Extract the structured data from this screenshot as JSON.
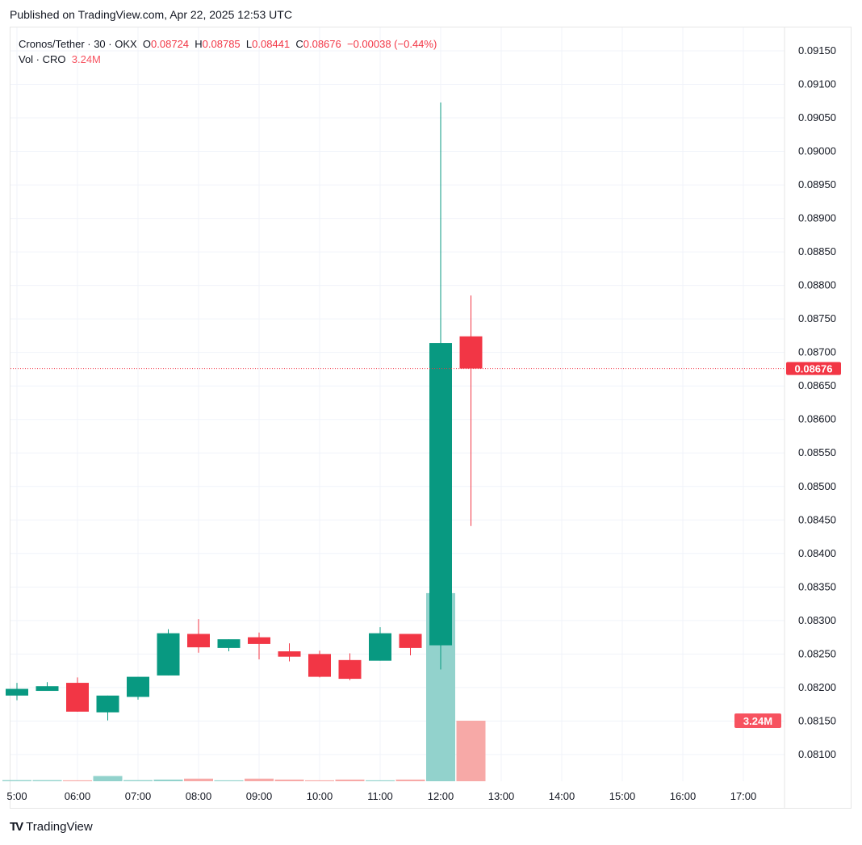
{
  "published": "Published on TradingView.com, Apr 22, 2025 12:53 UTC",
  "legend": {
    "symbol": "Cronos/Tether · 30 · OKX",
    "o_label": "O",
    "o": "0.08724",
    "h_label": "H",
    "h": "0.08785",
    "l_label": "L",
    "l": "0.08441",
    "c_label": "C",
    "c": "0.08676",
    "change": "−0.00038 (−0.44%)",
    "vol_label": "Vol · CRO",
    "vol": "3.24M"
  },
  "logo": "TradingView",
  "colors": {
    "up": "#089981",
    "down": "#f23645",
    "vol_up": "#92d2cc",
    "vol_down": "#f7a9a7",
    "grid": "#f0f3fa"
  },
  "chart_data": {
    "type": "candlestick",
    "title": "Cronos/Tether · 30 · OKX",
    "ylim": [
      0.0806,
      0.0918
    ],
    "yticks": [
      "0.08100",
      "0.08150",
      "0.08200",
      "0.08250",
      "0.08300",
      "0.08350",
      "0.08400",
      "0.08450",
      "0.08500",
      "0.08550",
      "0.08600",
      "0.08650",
      "0.08700",
      "0.08750",
      "0.08800",
      "0.08850",
      "0.08900",
      "0.08950",
      "0.09000",
      "0.09050",
      "0.09100",
      "0.09150"
    ],
    "xticks": [
      "5:00",
      "06:00",
      "07:00",
      "08:00",
      "09:00",
      "10:00",
      "11:00",
      "12:00",
      "13:00",
      "14:00",
      "15:00",
      "16:00",
      "17:00"
    ],
    "last_price_label": "0.08676",
    "last_volume_label": "3.24M",
    "candles": [
      {
        "t": "05:00",
        "o": 0.08188,
        "h": 0.08207,
        "l": 0.08181,
        "c": 0.08198,
        "v": 0.06
      },
      {
        "t": "05:30",
        "o": 0.08195,
        "h": 0.08208,
        "l": 0.08195,
        "c": 0.08202,
        "v": 0.06
      },
      {
        "t": "06:00",
        "o": 0.08207,
        "h": 0.08215,
        "l": 0.08164,
        "c": 0.08164,
        "v": 0.05
      },
      {
        "t": "06:30",
        "o": 0.08163,
        "h": 0.08188,
        "l": 0.08151,
        "c": 0.08188,
        "v": 0.28
      },
      {
        "t": "07:00",
        "o": 0.08186,
        "h": 0.08216,
        "l": 0.08182,
        "c": 0.08216,
        "v": 0.06
      },
      {
        "t": "07:30",
        "o": 0.08218,
        "h": 0.08287,
        "l": 0.08218,
        "c": 0.08281,
        "v": 0.09
      },
      {
        "t": "08:00",
        "o": 0.0828,
        "h": 0.08302,
        "l": 0.08252,
        "c": 0.0826,
        "v": 0.14
      },
      {
        "t": "08:30",
        "o": 0.08259,
        "h": 0.08272,
        "l": 0.08254,
        "c": 0.08272,
        "v": 0.05
      },
      {
        "t": "09:00",
        "o": 0.08275,
        "h": 0.08282,
        "l": 0.08242,
        "c": 0.08265,
        "v": 0.14
      },
      {
        "t": "09:30",
        "o": 0.08254,
        "h": 0.08266,
        "l": 0.08239,
        "c": 0.08246,
        "v": 0.09
      },
      {
        "t": "10:00",
        "o": 0.0825,
        "h": 0.08255,
        "l": 0.08215,
        "c": 0.08216,
        "v": 0.05
      },
      {
        "t": "10:30",
        "o": 0.08241,
        "h": 0.08251,
        "l": 0.08211,
        "c": 0.08213,
        "v": 0.09
      },
      {
        "t": "11:00",
        "o": 0.0824,
        "h": 0.0829,
        "l": 0.0824,
        "c": 0.08281,
        "v": 0.05
      },
      {
        "t": "11:30",
        "o": 0.0828,
        "h": 0.0828,
        "l": 0.08248,
        "c": 0.08259,
        "v": 0.09
      },
      {
        "t": "12:00",
        "o": 0.08263,
        "h": 0.09073,
        "l": 0.08227,
        "c": 0.08714,
        "v": 10.07
      },
      {
        "t": "12:30",
        "o": 0.08724,
        "h": 0.08785,
        "l": 0.08441,
        "c": 0.08676,
        "v": 3.24
      }
    ]
  }
}
